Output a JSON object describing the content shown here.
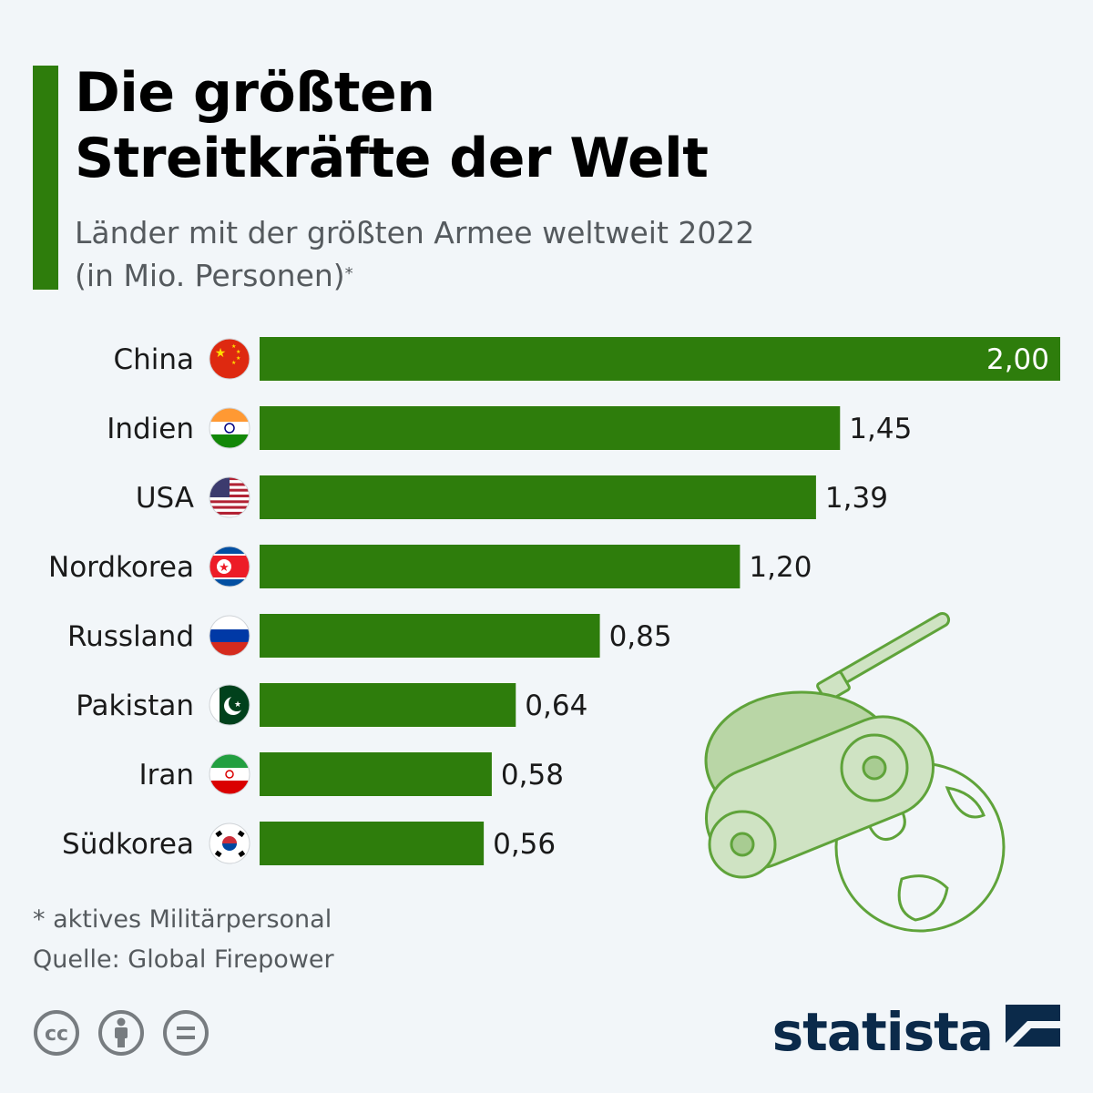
{
  "header": {
    "title": "Die größten\nStreitkräfte der Welt",
    "subtitle_line1": "Länder mit der größten Armee weltweit 2022",
    "subtitle_line2": "(in Mio. Personen)",
    "subtitle_marker": "*"
  },
  "colors": {
    "accent": "#2e7d0c",
    "bar": "#2e7d0c",
    "brand": "#0b2a4a",
    "illustration": "#5fa33a"
  },
  "chart_data": {
    "type": "bar",
    "orientation": "horizontal",
    "categories": [
      "China",
      "Indien",
      "USA",
      "Nordkorea",
      "Russland",
      "Pakistan",
      "Iran",
      "Südkorea"
    ],
    "values": [
      2.0,
      1.45,
      1.39,
      1.2,
      0.85,
      0.64,
      0.58,
      0.56
    ],
    "value_labels": [
      "2,00",
      "1,45",
      "1,39",
      "1,20",
      "0,85",
      "0,64",
      "0,58",
      "0,56"
    ],
    "flag_icons": [
      "china-flag-icon",
      "india-flag-icon",
      "usa-flag-icon",
      "north-korea-flag-icon",
      "russia-flag-icon",
      "pakistan-flag-icon",
      "iran-flag-icon",
      "south-korea-flag-icon"
    ],
    "xlim": [
      0,
      2.0
    ],
    "grid": false,
    "legend": "none"
  },
  "footer": {
    "footnote": "* aktives Militärpersonal",
    "source": "Quelle: Global Firepower",
    "license_icons": [
      "cc-icon",
      "attribution-icon",
      "no-derivatives-icon"
    ],
    "brand": "statista"
  }
}
